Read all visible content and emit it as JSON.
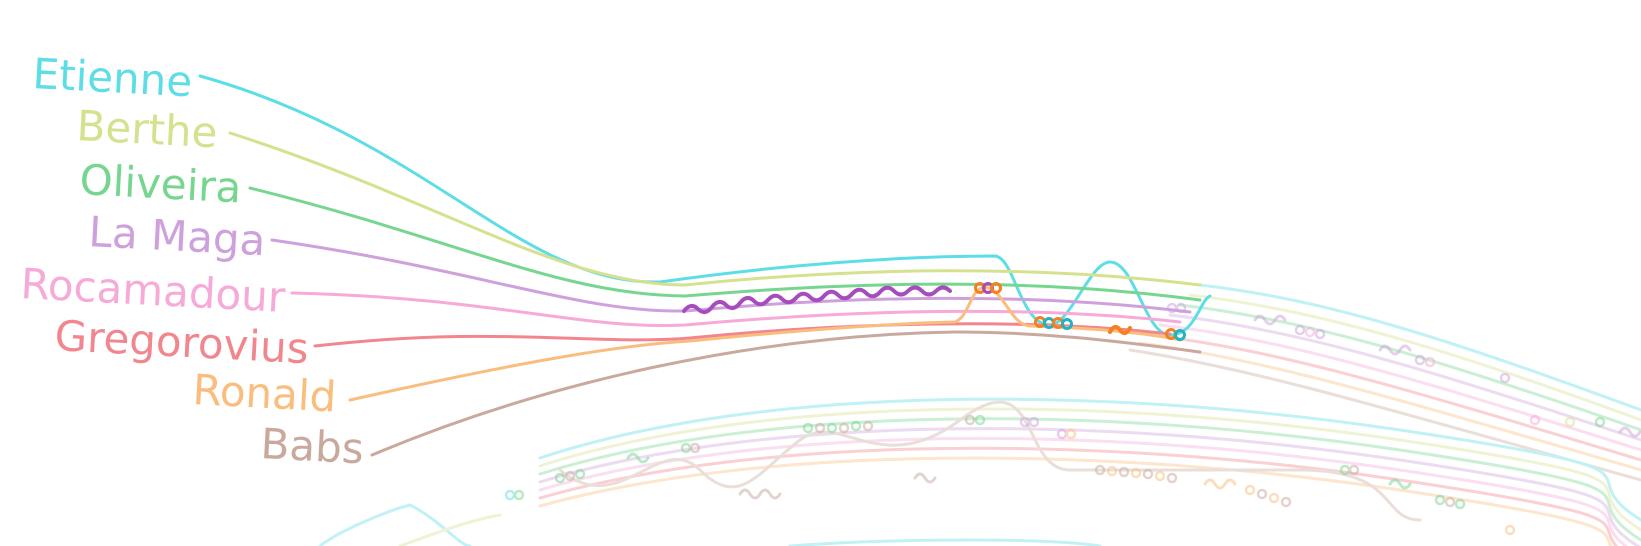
{
  "characters": [
    {
      "id": "etienne",
      "name": "Etienne",
      "color": "#5ddde6"
    },
    {
      "id": "berthe",
      "name": "Berthe",
      "color": "#d6e18f"
    },
    {
      "id": "oliveira",
      "name": "Oliveira",
      "color": "#76d68f"
    },
    {
      "id": "la-maga",
      "name": "La Maga",
      "color": "#cfa1dc"
    },
    {
      "id": "rocamadour",
      "name": "Rocamadour",
      "color": "#f7a9d7"
    },
    {
      "id": "gregorovius",
      "name": "Gregorovius",
      "color": "#f2868e"
    },
    {
      "id": "ronald",
      "name": "Ronald",
      "color": "#f9be7e"
    },
    {
      "id": "babs",
      "name": "Babs",
      "color": "#c9a99e"
    }
  ],
  "accent_colors": {
    "conversation_purple": "#a64dbd",
    "meeting_orange": "#f58021",
    "meeting_teal": "#21b3c2"
  }
}
